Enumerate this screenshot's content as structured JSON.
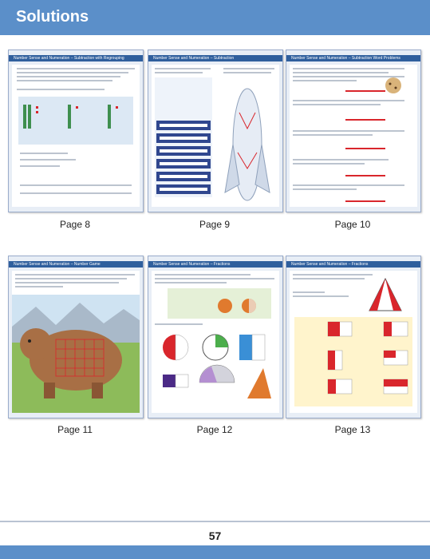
{
  "header": {
    "title": "Solutions"
  },
  "thumbnails": [
    {
      "caption": "Page 8",
      "heading": "Number Sense and Numeration – Subtraction with Regrouping"
    },
    {
      "caption": "Page 9",
      "heading": "Number Sense and Numeration – Subtraction"
    },
    {
      "caption": "Page 10",
      "heading": "Number Sense and Numeration – Subtraction Word Problems"
    },
    {
      "caption": "Page 11",
      "heading": "Number Sense and Numeration – Number Game"
    },
    {
      "caption": "Page 12",
      "heading": "Number Sense and Numeration – Fractions"
    },
    {
      "caption": "Page 13",
      "heading": "Number Sense and Numeration – Fractions"
    }
  ],
  "footer": {
    "page_number": "57"
  },
  "colors": {
    "header": "#5b8fc9",
    "thumb_bar": "#2f5f9d",
    "answer_red": "#d9262c"
  }
}
